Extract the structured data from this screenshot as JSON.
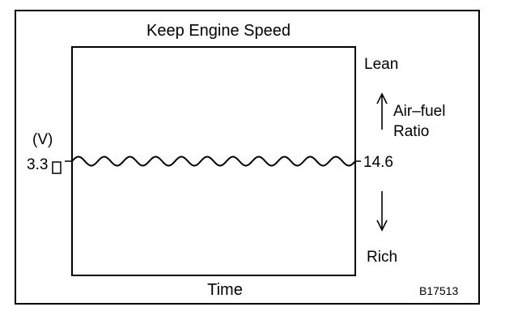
{
  "title": "Keep Engine Speed",
  "y_unit_label": "(V)",
  "voltage_value": "3.3",
  "afr_value": "14.6",
  "lean_label": "Lean",
  "rich_label": "Rich",
  "axis_title_line1": "Air–fuel",
  "axis_title_line2": "Ratio",
  "x_label": "Time",
  "figure_code": "B17513",
  "chart_data": {
    "type": "line",
    "title": "Keep Engine Speed",
    "xlabel": "Time",
    "ylabel": "(V)",
    "series": [
      {
        "values_note_free": true,
        "center_voltage": 3.3,
        "center_afr": 14.6,
        "cycles": 11
      }
    ]
  }
}
